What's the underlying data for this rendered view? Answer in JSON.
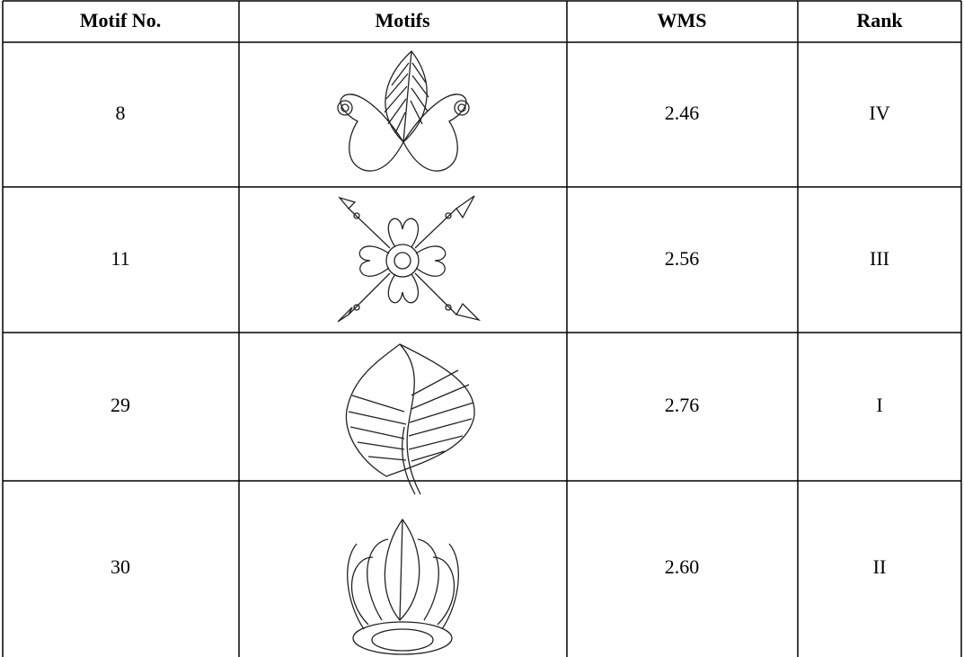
{
  "table": {
    "header": [
      "Motif No.",
      "Motifs",
      "WMS",
      "Rank"
    ],
    "rows": [
      {
        "motif_no": "8",
        "wms": "2.46",
        "rank": "IV"
      },
      {
        "motif_no": "11",
        "wms": "2.56",
        "rank": "III"
      },
      {
        "motif_no": "29",
        "wms": "2.76",
        "rank": "I"
      },
      {
        "motif_no": "30",
        "wms": "2.60",
        "rank": "II"
      }
    ]
  }
}
